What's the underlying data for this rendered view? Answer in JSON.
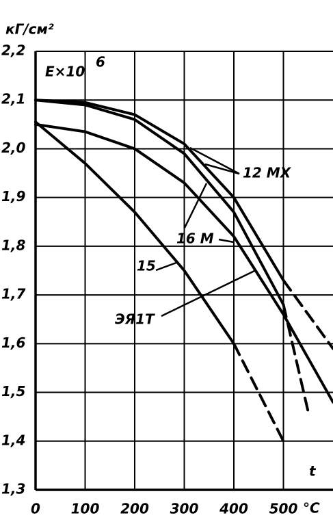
{
  "chart_data": {
    "type": "line",
    "title": "кГ/см²",
    "ylabel": "E×10",
    "ylabel_exponent": "6",
    "xlabel": "t",
    "xunit": "°C",
    "x": [
      0,
      100,
      200,
      300,
      400,
      500,
      550,
      600
    ],
    "xlim": [
      0,
      600
    ],
    "xticks": [
      0,
      100,
      200,
      300,
      400,
      500
    ],
    "ylim": [
      1.3,
      2.2
    ],
    "yticks": [
      {
        "value": 1.3,
        "label": "1,3"
      },
      {
        "value": 1.4,
        "label": "1,4"
      },
      {
        "value": 1.5,
        "label": "1,5"
      },
      {
        "value": 1.6,
        "label": "1,6"
      },
      {
        "value": 1.7,
        "label": "1,7"
      },
      {
        "value": 1.8,
        "label": "1,8"
      },
      {
        "value": 1.9,
        "label": "1,9"
      },
      {
        "value": 2.0,
        "label": "2,0"
      },
      {
        "value": 2.1,
        "label": "2,1"
      },
      {
        "value": 2.2,
        "label": "2,2"
      }
    ],
    "grid": true,
    "series": [
      {
        "name": "12 MX",
        "color": "#000000",
        "dashed_from": 500,
        "values": [
          2.1,
          2.095,
          2.07,
          2.01,
          1.9,
          1.73,
          1.66,
          1.59
        ]
      },
      {
        "name": "16 M",
        "color": "#000000",
        "dashed_from": 500,
        "values": [
          2.1,
          2.09,
          2.06,
          1.99,
          1.87,
          1.68,
          1.46,
          null
        ]
      },
      {
        "name": "15",
        "color": "#000000",
        "dashed_from": 400,
        "values": [
          2.055,
          1.97,
          1.87,
          1.75,
          1.6,
          1.4,
          null,
          null
        ]
      },
      {
        "name": "ЭЯ1Т",
        "color": "#000000",
        "values": [
          2.05,
          2.035,
          2.0,
          1.93,
          1.82,
          1.66,
          1.57,
          1.48
        ]
      }
    ]
  }
}
